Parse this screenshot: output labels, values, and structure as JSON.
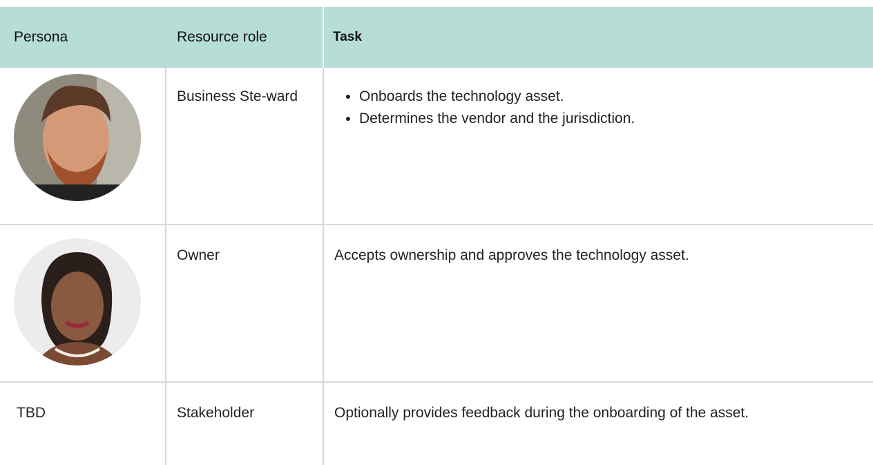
{
  "table": {
    "header": [
      "Persona",
      "Resource role",
      "Task"
    ],
    "rows": [
      {
        "role": "Business Ste-ward",
        "task_items": [
          "Onboards the technology asset.",
          "Determines the vendor and the jurisdiction."
        ]
      },
      {
        "role": "Owner",
        "task": "Accepts ownership and approves the technology asset."
      },
      {
        "persona": "TBD",
        "role": "Stakeholder",
        "task": "Optionally provides feedback during the onboarding of the asset."
      }
    ]
  }
}
